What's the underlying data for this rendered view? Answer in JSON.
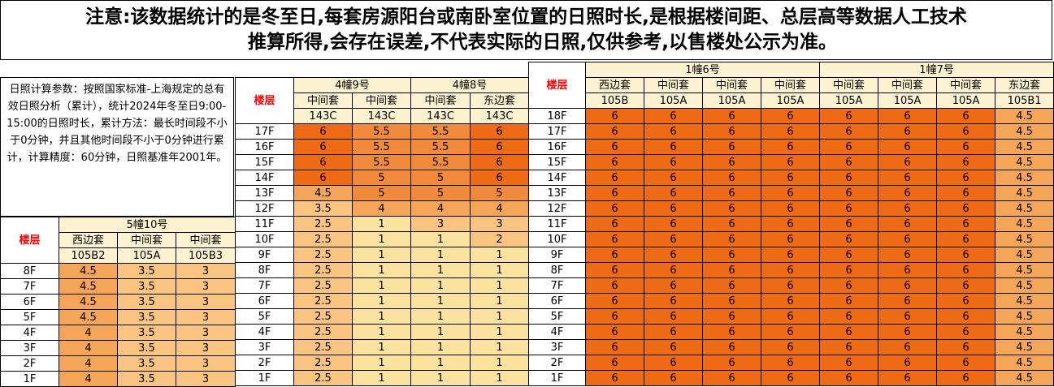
{
  "notice": {
    "line1": "注意:该数据统计的是冬至日,每套房源阳台或南卧室位置的日照时长,是根据楼间距、总层高等数据人工技术",
    "line2": "推算所得,会存在误差,不代表实际的日照,仅供参考,以售楼处公示为准。"
  },
  "params_text": "日照计算参数：按照国家标准-上海规定的总有效日照分析（累计），统计2024年冬至日9:00-15:00的日照时长，累计方法：最长时间段不小于0分钟，并且其他时间段不小于0分钟进行累计，计算精度：60分钟，日照基准年2001年。",
  "floor_label": "楼层",
  "colors": {
    "h6": "#ee6a14",
    "h5_5": "#f28a3c",
    "h4_5": "#f5a558",
    "h3_5": "#f8c47f",
    "h1": "#fbe29e",
    "header": "#fdf2cf"
  },
  "table_left": {
    "building": "5幢10号",
    "units": [
      {
        "type": "西边套",
        "room": "105B2"
      },
      {
        "type": "中间套",
        "room": "105A"
      },
      {
        "type": "中间套",
        "room": "105B3"
      }
    ],
    "rows": [
      {
        "floor": "8F",
        "values": [
          "4.5",
          "3.5",
          "3"
        ]
      },
      {
        "floor": "7F",
        "values": [
          "4.5",
          "3.5",
          "3"
        ]
      },
      {
        "floor": "6F",
        "values": [
          "4.5",
          "3.5",
          "3"
        ]
      },
      {
        "floor": "5F",
        "values": [
          "4.5",
          "3.5",
          "3"
        ]
      },
      {
        "floor": "4F",
        "values": [
          "4",
          "3.5",
          "3"
        ]
      },
      {
        "floor": "3F",
        "values": [
          "4",
          "3.5",
          "3"
        ]
      },
      {
        "floor": "2F",
        "values": [
          "4",
          "3.5",
          "3"
        ]
      },
      {
        "floor": "1F",
        "values": [
          "4",
          "3.5",
          "3"
        ]
      }
    ]
  },
  "table_middle": {
    "buildings": [
      "4幢9号",
      "4幢8号"
    ],
    "units": [
      {
        "type": "中间套",
        "room": "143C"
      },
      {
        "type": "中间套",
        "room": "143C"
      },
      {
        "type": "中间套",
        "room": "143C"
      },
      {
        "type": "东边套",
        "room": "143C"
      }
    ],
    "rows": [
      {
        "floor": "17F",
        "values": [
          "6",
          "5.5",
          "5.5",
          "6"
        ]
      },
      {
        "floor": "16F",
        "values": [
          "6",
          "5.5",
          "5.5",
          "6"
        ]
      },
      {
        "floor": "15F",
        "values": [
          "6",
          "5.5",
          "5.5",
          "6"
        ]
      },
      {
        "floor": "14F",
        "values": [
          "6",
          "5",
          "5",
          "6"
        ]
      },
      {
        "floor": "13F",
        "values": [
          "4.5",
          "5",
          "5",
          "5"
        ]
      },
      {
        "floor": "12F",
        "values": [
          "3.5",
          "4",
          "4",
          "4"
        ]
      },
      {
        "floor": "11F",
        "values": [
          "2.5",
          "1",
          "3",
          "3"
        ]
      },
      {
        "floor": "10F",
        "values": [
          "2.5",
          "1",
          "1",
          "2"
        ]
      },
      {
        "floor": "9F",
        "values": [
          "2.5",
          "1",
          "1",
          "1"
        ]
      },
      {
        "floor": "8F",
        "values": [
          "2.5",
          "1",
          "1",
          "1"
        ]
      },
      {
        "floor": "7F",
        "values": [
          "2.5",
          "1",
          "1",
          "1"
        ]
      },
      {
        "floor": "6F",
        "values": [
          "2.5",
          "1",
          "1",
          "1"
        ]
      },
      {
        "floor": "5F",
        "values": [
          "2.5",
          "1",
          "1",
          "1"
        ]
      },
      {
        "floor": "4F",
        "values": [
          "2.5",
          "1",
          "1",
          "1"
        ]
      },
      {
        "floor": "3F",
        "values": [
          "2.5",
          "1",
          "1",
          "1"
        ]
      },
      {
        "floor": "2F",
        "values": [
          "2.5",
          "1",
          "1",
          "1"
        ]
      },
      {
        "floor": "1F",
        "values": [
          "2.5",
          "1",
          "1",
          "1"
        ]
      }
    ]
  },
  "table_right": {
    "buildings": [
      "1幢6号",
      "1幢7号"
    ],
    "units": [
      {
        "type": "西边套",
        "room": "105B"
      },
      {
        "type": "中间套",
        "room": "105A"
      },
      {
        "type": "中间套",
        "room": "105A"
      },
      {
        "type": "中间套",
        "room": "105A"
      },
      {
        "type": "中间套",
        "room": "105A"
      },
      {
        "type": "中间套",
        "room": "105A"
      },
      {
        "type": "中间套",
        "room": "105A"
      },
      {
        "type": "东边套",
        "room": "105B1"
      }
    ],
    "rows": [
      {
        "floor": "18F",
        "values": [
          "6",
          "6",
          "6",
          "6",
          "6",
          "6",
          "6",
          "4.5"
        ]
      },
      {
        "floor": "17F",
        "values": [
          "6",
          "6",
          "6",
          "6",
          "6",
          "6",
          "6",
          "4.5"
        ]
      },
      {
        "floor": "16F",
        "values": [
          "6",
          "6",
          "6",
          "6",
          "6",
          "6",
          "6",
          "4.5"
        ]
      },
      {
        "floor": "15F",
        "values": [
          "6",
          "6",
          "6",
          "6",
          "6",
          "6",
          "6",
          "4.5"
        ]
      },
      {
        "floor": "14F",
        "values": [
          "6",
          "6",
          "6",
          "6",
          "6",
          "6",
          "6",
          "4.5"
        ]
      },
      {
        "floor": "13F",
        "values": [
          "6",
          "6",
          "6",
          "6",
          "6",
          "6",
          "6",
          "4.5"
        ]
      },
      {
        "floor": "12F",
        "values": [
          "6",
          "6",
          "6",
          "6",
          "6",
          "6",
          "6",
          "4.5"
        ]
      },
      {
        "floor": "11F",
        "values": [
          "6",
          "6",
          "6",
          "6",
          "6",
          "6",
          "6",
          "4.5"
        ]
      },
      {
        "floor": "10F",
        "values": [
          "6",
          "6",
          "6",
          "6",
          "6",
          "6",
          "6",
          "4.5"
        ]
      },
      {
        "floor": "9F",
        "values": [
          "6",
          "6",
          "6",
          "6",
          "6",
          "6",
          "6",
          "4.5"
        ]
      },
      {
        "floor": "8F",
        "values": [
          "6",
          "6",
          "6",
          "6",
          "6",
          "6",
          "6",
          "4.5"
        ]
      },
      {
        "floor": "7F",
        "values": [
          "6",
          "6",
          "6",
          "6",
          "6",
          "6",
          "6",
          "4.5"
        ]
      },
      {
        "floor": "6F",
        "values": [
          "6",
          "6",
          "6",
          "6",
          "6",
          "6",
          "6",
          "4.5"
        ]
      },
      {
        "floor": "5F",
        "values": [
          "6",
          "6",
          "6",
          "6",
          "6",
          "6",
          "6",
          "4.5"
        ]
      },
      {
        "floor": "4F",
        "values": [
          "6",
          "6",
          "6",
          "6",
          "6",
          "6",
          "6",
          "4.5"
        ]
      },
      {
        "floor": "3F",
        "values": [
          "6",
          "6",
          "6",
          "6",
          "6",
          "6",
          "6",
          "4.5"
        ]
      },
      {
        "floor": "2F",
        "values": [
          "6",
          "6",
          "6",
          "6",
          "6",
          "6",
          "6",
          "4.5"
        ]
      },
      {
        "floor": "1F",
        "values": [
          "6",
          "6",
          "6",
          "6",
          "6",
          "6",
          "6",
          "4.5"
        ]
      }
    ]
  }
}
